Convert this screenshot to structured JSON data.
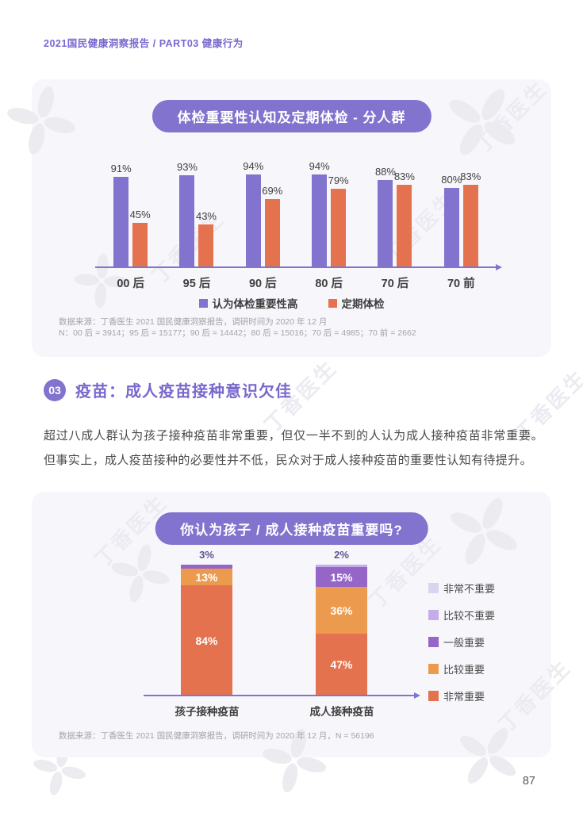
{
  "page": {
    "breadcrumb": "2021国民健康洞察报告 / PART03 健康行为",
    "page_number": "87",
    "watermark_text": "丁香医生"
  },
  "colors": {
    "purple": "#8173CE",
    "orange": "#E5724E",
    "light_orange": "#EC9B4E",
    "mid_purple": "#9565C8",
    "light_purple": "#C5AEE8",
    "very_light_purple": "#DCD3F0",
    "axis": "#8173CE"
  },
  "section": {
    "badge": "03",
    "title": "疫苗：成人疫苗接种意识欠佳",
    "paragraph": "超过八成人群认为孩子接种疫苗非常重要，但仅一半不到的人认为成人接种疫苗非常重要。但事实上，成人疫苗接种的必要性并不低，民众对于成人接种疫苗的重要性认知有待提升。"
  },
  "chart_data": [
    {
      "type": "bar",
      "title": "体检重要性认知及定期体检 - 分人群",
      "categories": [
        "00 后",
        "95 后",
        "90 后",
        "80 后",
        "70 后",
        "70 前"
      ],
      "series": [
        {
          "name": "认为体检重要性高",
          "color": "#8173CE",
          "values": [
            91,
            93,
            94,
            94,
            88,
            80
          ]
        },
        {
          "name": "定期体检",
          "color": "#E5724E",
          "values": [
            45,
            43,
            69,
            79,
            83,
            83
          ]
        }
      ],
      "unit": "%",
      "ylim": [
        0,
        100
      ],
      "grid": false,
      "legend_position": "bottom",
      "source_lines": [
        "数据来源：丁香医生 2021 国民健康洞察报告，调研时间为 2020 年 12 月",
        "N：00 后 = 3914；95 后 = 15177；90 后 = 14442；80 后 = 15016；70 后 = 4985；70 前 = 2662"
      ]
    },
    {
      "type": "stacked-bar",
      "title": "你认为孩子 / 成人接种疫苗重要吗?",
      "categories": [
        "孩子接种疫苗",
        "成人接种疫苗"
      ],
      "legend": [
        {
          "label": "非常不重要",
          "color": "#DCD3F0"
        },
        {
          "label": "比较不重要",
          "color": "#C5AEE8"
        },
        {
          "label": "一般重要",
          "color": "#9565C8"
        },
        {
          "label": "比较重要",
          "color": "#EC9B4E"
        },
        {
          "label": "非常重要",
          "color": "#E5724E"
        }
      ],
      "bars": [
        {
          "category": "孩子接种疫苗",
          "segments": [
            {
              "label": "非常重要",
              "value": 84,
              "color": "#E5724E"
            },
            {
              "label": "比较重要",
              "value": 13,
              "color": "#EC9B4E"
            },
            {
              "label": "一般重要",
              "value": 3,
              "color": "#9565C8",
              "label_outside": true
            }
          ]
        },
        {
          "category": "成人接种疫苗",
          "segments": [
            {
              "label": "非常重要",
              "value": 47,
              "color": "#E5724E"
            },
            {
              "label": "比较重要",
              "value": 36,
              "color": "#EC9B4E"
            },
            {
              "label": "一般重要",
              "value": 15,
              "color": "#9565C8"
            },
            {
              "label": "比较不重要",
              "value": 2,
              "color": "#C5AEE8",
              "label_outside": true
            }
          ]
        }
      ],
      "ylim": [
        0,
        100
      ],
      "legend_position": "right",
      "source": "数据来源：丁香医生 2021 国民健康洞察报告，调研时间为 2020 年 12 月，N = 56196"
    }
  ]
}
